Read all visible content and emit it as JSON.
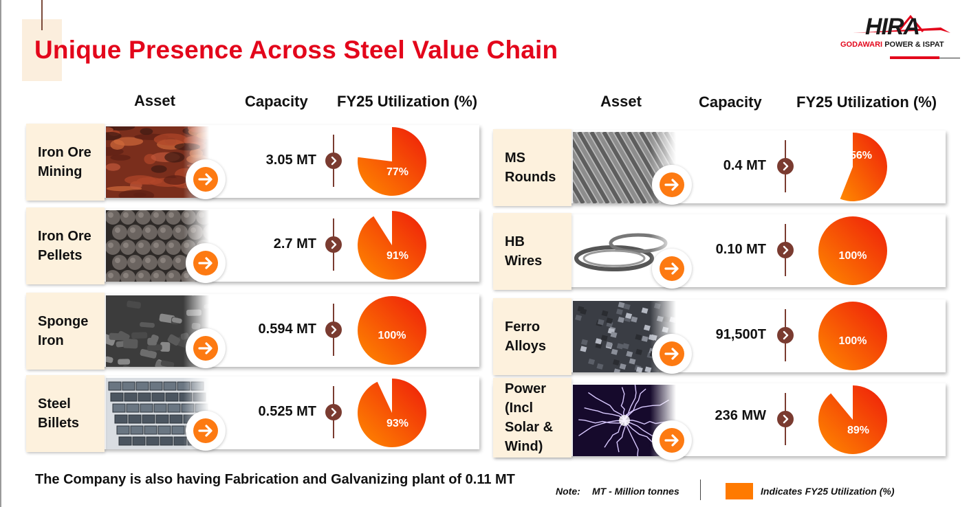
{
  "title": "Unique Presence Across Steel Value Chain",
  "logo": {
    "name": "HIRA",
    "subtitle_red": "GODAWARI",
    "subtitle_dark": "POWER & ISPAT"
  },
  "headers": {
    "left": {
      "asset": "Asset",
      "capacity": "Capacity",
      "utilization": "FY25 Utilization (%)"
    },
    "right": {
      "asset": "Asset",
      "capacity": "Capacity",
      "utilization": "FY25 Utilization (%)"
    }
  },
  "assets_left": [
    {
      "name": "Iron Ore Mining",
      "line1": "Iron Ore",
      "line2": "Mining",
      "capacity": "3.05 MT",
      "utilization": 77,
      "utilization_label": "77%",
      "image": "iron-ore-mining-photo"
    },
    {
      "name": "Iron Ore Pellets",
      "line1": "Iron Ore",
      "line2": "Pellets",
      "capacity": "2.7 MT",
      "utilization": 91,
      "utilization_label": "91%",
      "image": "iron-ore-pellets-photo"
    },
    {
      "name": "Sponge Iron",
      "line1": "Sponge",
      "line2": "Iron",
      "capacity": "0.594 MT",
      "utilization": 100,
      "utilization_label": "100%",
      "image": "sponge-iron-photo"
    },
    {
      "name": "Steel Billets",
      "line1": "Steel",
      "line2": "Billets",
      "capacity": "0.525 MT",
      "utilization": 93,
      "utilization_label": "93%",
      "image": "steel-billets-photo"
    }
  ],
  "assets_right": [
    {
      "name": "MS Rounds",
      "line1": "MS",
      "line2": "Rounds",
      "capacity": "0.4 MT",
      "utilization": 56,
      "utilization_label": "56%",
      "image": "ms-rounds-photo"
    },
    {
      "name": "HB Wires",
      "line1": "HB",
      "line2": "Wires",
      "capacity": "0.10 MT",
      "utilization": 100,
      "utilization_label": "100%",
      "image": "hb-wires-photo"
    },
    {
      "name": "Ferro Alloys",
      "line1": "Ferro",
      "line2": "Alloys",
      "capacity": "91,500T",
      "utilization": 100,
      "utilization_label": "100%",
      "image": "ferro-alloys-photo"
    },
    {
      "name": "Power (Incl Solar & Wind)",
      "line1": "Power",
      "line2": "(Incl",
      "line3": "Solar &",
      "line4": "Wind)",
      "capacity": "236 MW",
      "utilization": 89,
      "utilization_label": "89%",
      "image": "power-lightning-photo"
    }
  ],
  "footnote": "The Company is also having Fabrication and Galvanizing plant of 0.11 MT",
  "note": {
    "label": "Note:",
    "text": "MT - Million tonnes"
  },
  "legend": {
    "text": "Indicates FY25 Utilization (%)",
    "color": "#ff7a00"
  },
  "colors": {
    "title_red": "#e3061b",
    "pie_light": "#ff8a00",
    "pie_dark": "#ee1c0a",
    "arrow_orange": "#fd7a12",
    "dot_brown": "#7a3b30",
    "label_bg": "#fdf1dd"
  }
}
